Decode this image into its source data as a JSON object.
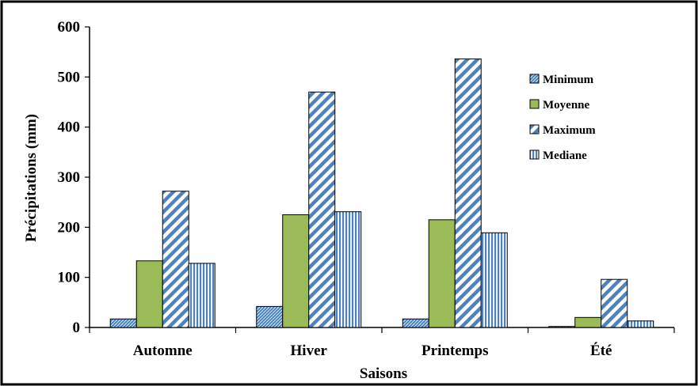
{
  "chart_data": {
    "type": "bar",
    "title": "",
    "xlabel": "Saisons",
    "ylabel": "Précipitations (mm)",
    "ylim": [
      0,
      600
    ],
    "yticks": [
      0,
      100,
      200,
      300,
      400,
      500,
      600
    ],
    "categories": [
      "Automne",
      "Hiver",
      "Printemps",
      "Été"
    ],
    "series": [
      {
        "name": "Minimum",
        "values": [
          17,
          42,
          17,
          2
        ],
        "color": "#4f81bd",
        "pattern": "cross-hatch"
      },
      {
        "name": "Moyenne",
        "values": [
          133,
          225,
          215,
          20
        ],
        "color": "#9bbb59",
        "pattern": "solid"
      },
      {
        "name": "Maximum",
        "values": [
          272,
          470,
          536,
          96
        ],
        "color": "#4f81bd",
        "pattern": "diagonal"
      },
      {
        "name": "Mediane",
        "values": [
          128,
          231,
          189,
          13
        ],
        "color": "#4f81bd",
        "pattern": "vertical"
      }
    ],
    "legend_position": "top-right",
    "grid": false
  }
}
